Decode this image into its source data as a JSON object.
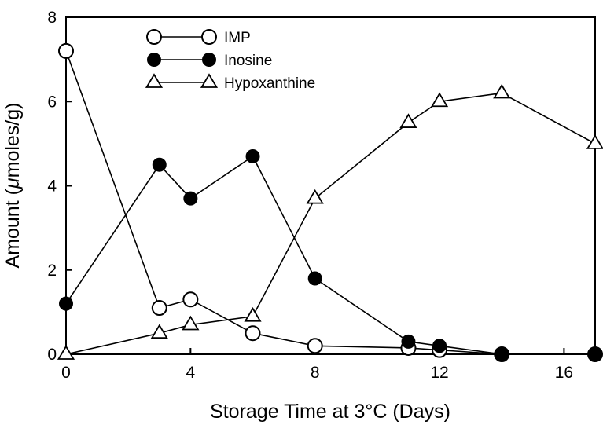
{
  "chart_data": {
    "type": "line",
    "xlabel": "Storage Time at 3°C (Days)",
    "ylabel_parts": [
      "Amount (",
      "μ",
      "moles/g)"
    ],
    "xlim": [
      0,
      17
    ],
    "ylim": [
      0,
      8
    ],
    "xticks": [
      0,
      4,
      8,
      12,
      16
    ],
    "yticks": [
      0,
      2,
      4,
      6,
      8
    ],
    "grid": false,
    "legend_position": "top-left",
    "series": [
      {
        "name": "IMP",
        "marker": "open-circle",
        "x": [
          0,
          3,
          4,
          6,
          8,
          11,
          12,
          14,
          17
        ],
        "y": [
          7.2,
          1.1,
          1.3,
          0.5,
          0.2,
          0.15,
          0.1,
          0.0,
          0.0
        ]
      },
      {
        "name": "Inosine",
        "marker": "filled-circle",
        "x": [
          0,
          3,
          4,
          6,
          8,
          11,
          12,
          14,
          17
        ],
        "y": [
          1.2,
          4.5,
          3.7,
          4.7,
          1.8,
          0.3,
          0.2,
          0.0,
          0.0
        ]
      },
      {
        "name": "Hypoxanthine",
        "marker": "open-triangle",
        "x": [
          0,
          3,
          4,
          6,
          8,
          11,
          12,
          14,
          17
        ],
        "y": [
          0.0,
          0.5,
          0.7,
          0.9,
          3.7,
          5.5,
          6.0,
          6.2,
          5.0
        ]
      }
    ]
  }
}
